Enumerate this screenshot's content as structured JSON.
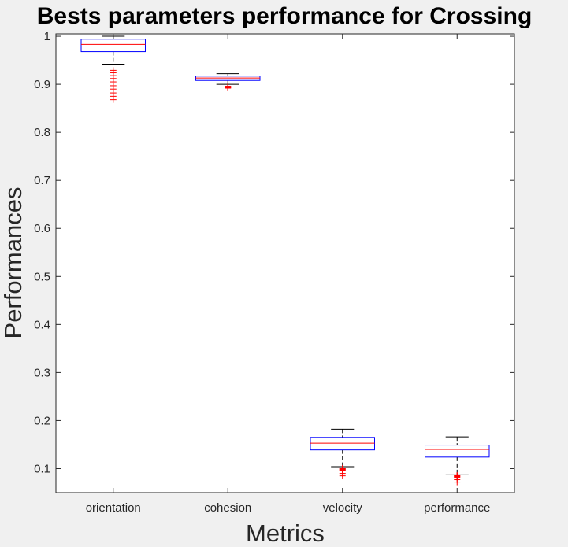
{
  "chart_data": {
    "type": "box",
    "title": "Bests parameters performance for Crossing",
    "xlabel": "Metrics",
    "ylabel": "Performances",
    "ylim": [
      0.05,
      1.005
    ],
    "yticks": [
      0.1,
      0.2,
      0.3,
      0.4,
      0.5,
      0.6,
      0.7,
      0.8,
      0.9,
      1
    ],
    "ytick_labels": [
      "0.1",
      "0.2",
      "0.3",
      "0.4",
      "0.5",
      "0.6",
      "0.7",
      "0.8",
      "0.9",
      "1"
    ],
    "categories": [
      "orientation",
      "cohesion",
      "velocity",
      "performance"
    ],
    "grid": false,
    "colors": {
      "box": "#0000ff",
      "median": "#ff0000",
      "whisker": "#000000",
      "outlier": "#ff0000",
      "axes_bg": "#ffffff",
      "figure_bg": "#f0f0f0"
    },
    "boxes": [
      {
        "category": "orientation",
        "whisker_low": 0.942,
        "q1": 0.968,
        "median": 0.983,
        "q3": 0.994,
        "whisker_high": 1.0,
        "outliers": [
          0.929,
          0.924,
          0.918,
          0.912,
          0.905,
          0.897,
          0.89,
          0.882,
          0.875,
          0.868
        ]
      },
      {
        "category": "cohesion",
        "whisker_low": 0.9,
        "q1": 0.908,
        "median": 0.913,
        "q3": 0.917,
        "whisker_high": 0.922,
        "outliers": [
          0.896,
          0.895,
          0.894,
          0.893,
          0.892
        ]
      },
      {
        "category": "velocity",
        "whisker_low": 0.104,
        "q1": 0.139,
        "median": 0.153,
        "q3": 0.165,
        "whisker_high": 0.182,
        "outliers": [
          0.101,
          0.1,
          0.099,
          0.098,
          0.097,
          0.096,
          0.09,
          0.085
        ]
      },
      {
        "category": "performance",
        "whisker_low": 0.087,
        "q1": 0.124,
        "median": 0.14,
        "q3": 0.149,
        "whisker_high": 0.166,
        "outliers": [
          0.086,
          0.085,
          0.084,
          0.083,
          0.082,
          0.077,
          0.072
        ]
      }
    ]
  }
}
